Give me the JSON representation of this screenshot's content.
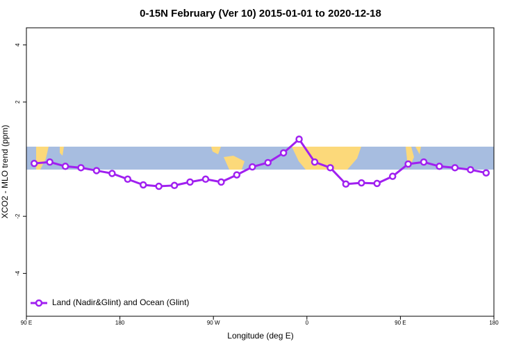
{
  "chart_data": {
    "type": "line",
    "title": "0-15N February (Ver 10)   2015-01-01 to 2020-12-18",
    "x_label": "Longitude (deg E)",
    "y_label": "XCO2 - MLO trend (ppm)",
    "x": [
      97.5,
      112.5,
      127.5,
      142.5,
      157.5,
      172.5,
      187.5,
      202.5,
      217.5,
      232.5,
      247.5,
      262.5,
      277.5,
      292.5,
      307.5,
      322.5,
      337.5,
      352.5,
      367.5,
      382.5,
      397.5,
      412.5,
      427.5,
      442.5,
      457.5,
      472.5,
      487.5,
      502.5,
      517.5,
      532.5
    ],
    "series": [
      {
        "name": "Land (Nadir&Glint) and Ocean (Glint)",
        "color": "#a020f0",
        "values": [
          -0.15,
          -0.1,
          -0.25,
          -0.3,
          -0.4,
          -0.5,
          -0.7,
          -0.9,
          -0.95,
          -0.92,
          -0.8,
          -0.7,
          -0.8,
          -0.55,
          -0.27,
          -0.12,
          0.22,
          0.7,
          -0.1,
          -0.3,
          -0.87,
          -0.83,
          -0.85,
          -0.6,
          -0.17,
          -0.1,
          -0.25,
          -0.3,
          -0.37,
          -0.48
        ]
      }
    ],
    "xlim": [
      90,
      540
    ],
    "xticks": [
      {
        "value": 90,
        "label": "90 E"
      },
      {
        "value": 180,
        "label": "180"
      },
      {
        "value": 270,
        "label": "90 W"
      },
      {
        "value": 360,
        "label": "0"
      },
      {
        "value": 450,
        "label": "90 E"
      },
      {
        "value": 540,
        "label": "180"
      }
    ],
    "ylim": [
      -5.5,
      4.6
    ],
    "yticks": [
      -4,
      -2,
      2,
      4
    ],
    "legend": "bottom-left"
  }
}
